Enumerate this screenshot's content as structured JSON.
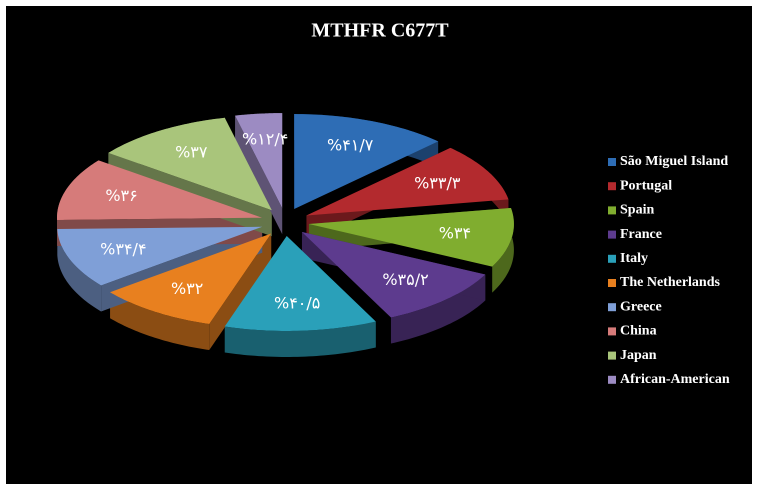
{
  "chart_data": {
    "type": "pie",
    "title": "MTHFR C677T",
    "categories": [
      "São Miguel Island",
      "Portugal",
      "Spain",
      "France",
      "Italy",
      "The Netherlands",
      "Greece",
      "China",
      "Japan",
      "African-American"
    ],
    "values": [
      41.7,
      33.3,
      34,
      35.2,
      40.5,
      32,
      34.4,
      36,
      37,
      12.4
    ],
    "value_labels": [
      "%۴۱/۷",
      "%۳۳/۳",
      "%۳۴",
      "%۳۵/۲",
      "%۴۰/۵",
      "%۳۲",
      "%۳۴/۴",
      "%۳۶",
      "%۳۷",
      "%۱۲/۴"
    ],
    "colors": [
      "#2e6db5",
      "#b32a2e",
      "#80ad2f",
      "#5d3b8e",
      "#2aa0b9",
      "#e8801f",
      "#7f9fd7",
      "#d67b7a",
      "#a9c57b",
      "#9c8bc2"
    ],
    "legend": "right"
  }
}
